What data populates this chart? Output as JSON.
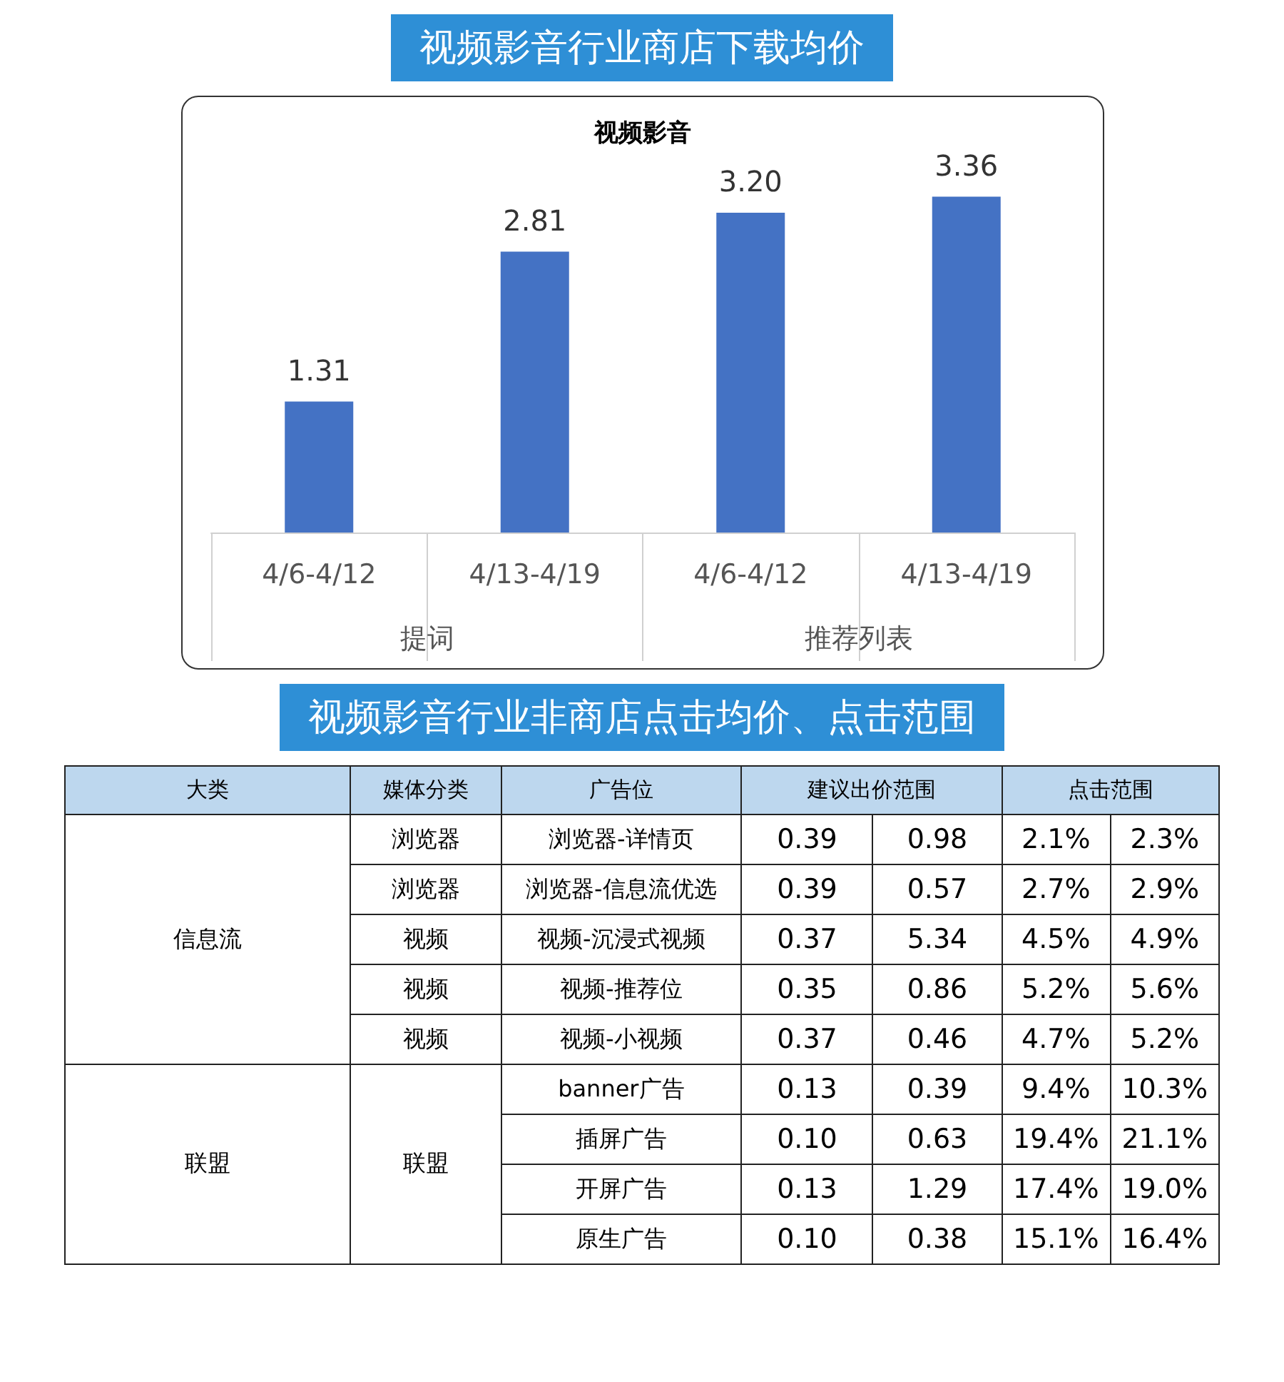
{
  "chart_data": [
    {
      "type": "bar",
      "title": "视频影音行业商店下载均价",
      "subtitle": "视频影音",
      "categories": [
        "4/6-4/12",
        "4/13-4/19",
        "4/6-4/12",
        "4/13-4/19"
      ],
      "annotations": [
        "提词",
        "推荐列表"
      ],
      "values": [
        1.31,
        2.81,
        3.2,
        3.36
      ],
      "value_labels": [
        "1.31",
        "2.81",
        "3.20",
        "3.36"
      ],
      "color": "#4472c4"
    },
    {
      "type": "other",
      "title": "视频影音行业非商店点击均价、点击范围",
      "annotations": [
        "大类",
        "媒体分类",
        "广告位",
        "建议出价范围",
        "点击范围",
        "信息流",
        "浏览器",
        "浏览器-详情页",
        "0.39",
        "0.98",
        "2.1%",
        "2.3%",
        "浏览器",
        "浏览器-信息流优选",
        "0.39",
        "0.57",
        "2.7%",
        "2.9%",
        "视频",
        "视频-沉浸式视频",
        "0.37",
        "5.34",
        "4.5%",
        "4.9%",
        "视频",
        "视频-推荐位",
        "0.35",
        "0.86",
        "5.2%",
        "5.6%",
        "视频",
        "视频-小视频",
        "0.37",
        "0.46",
        "4.7%",
        "5.2%",
        "联盟",
        "联盟",
        "banner广告",
        "0.13",
        "0.39",
        "9.4%",
        "10.3%",
        "插屏广告",
        "0.10",
        "0.63",
        "19.4%",
        "21.1%",
        "开屏广告",
        "0.13",
        "1.29",
        "17.4%",
        "19.0%",
        "原生广告",
        "0.10",
        "0.38",
        "15.1%",
        "16.4%"
      ]
    }
  ]
}
